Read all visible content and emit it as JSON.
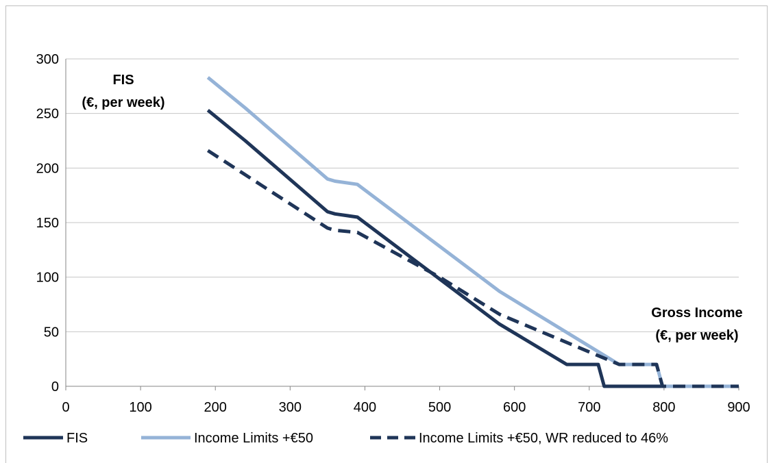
{
  "chart_data": {
    "type": "line",
    "xlim": [
      0,
      900
    ],
    "ylim": [
      0,
      300
    ],
    "x_ticks": [
      "0",
      "100",
      "200",
      "300",
      "400",
      "500",
      "600",
      "700",
      "800",
      "900"
    ],
    "y_ticks": [
      "0",
      "50",
      "100",
      "150",
      "200",
      "250",
      "300"
    ],
    "grid": "horizontal",
    "legend_position": "bottom",
    "annotations": {
      "y_title_line1": "FIS",
      "y_title_line2": "(€, per week)",
      "x_title_line1": "Gross Income",
      "x_title_line2": "(€, per week)"
    },
    "series": [
      {
        "name": "FIS",
        "color": "#1f3558",
        "dash": false,
        "points": [
          [
            190,
            253
          ],
          [
            240,
            225
          ],
          [
            350,
            160
          ],
          [
            360,
            158
          ],
          [
            390,
            155
          ],
          [
            580,
            57
          ],
          [
            670,
            20
          ],
          [
            712,
            20
          ],
          [
            720,
            0
          ],
          [
            900,
            0
          ]
        ]
      },
      {
        "name": "Income Limits +€50",
        "color": "#95b3d7",
        "dash": false,
        "points": [
          [
            190,
            283
          ],
          [
            240,
            255
          ],
          [
            350,
            190
          ],
          [
            360,
            188
          ],
          [
            390,
            185
          ],
          [
            580,
            87
          ],
          [
            740,
            20
          ],
          [
            790,
            20
          ],
          [
            798,
            0
          ],
          [
            900,
            0
          ]
        ]
      },
      {
        "name": "Income Limits +€50, WR reduced to 46%",
        "color": "#1f3558",
        "dash": true,
        "points": [
          [
            190,
            216
          ],
          [
            350,
            145
          ],
          [
            360,
            143
          ],
          [
            390,
            141
          ],
          [
            500,
            100
          ],
          [
            580,
            66
          ],
          [
            740,
            20
          ],
          [
            790,
            20
          ],
          [
            798,
            0
          ],
          [
            900,
            0
          ]
        ]
      }
    ]
  }
}
